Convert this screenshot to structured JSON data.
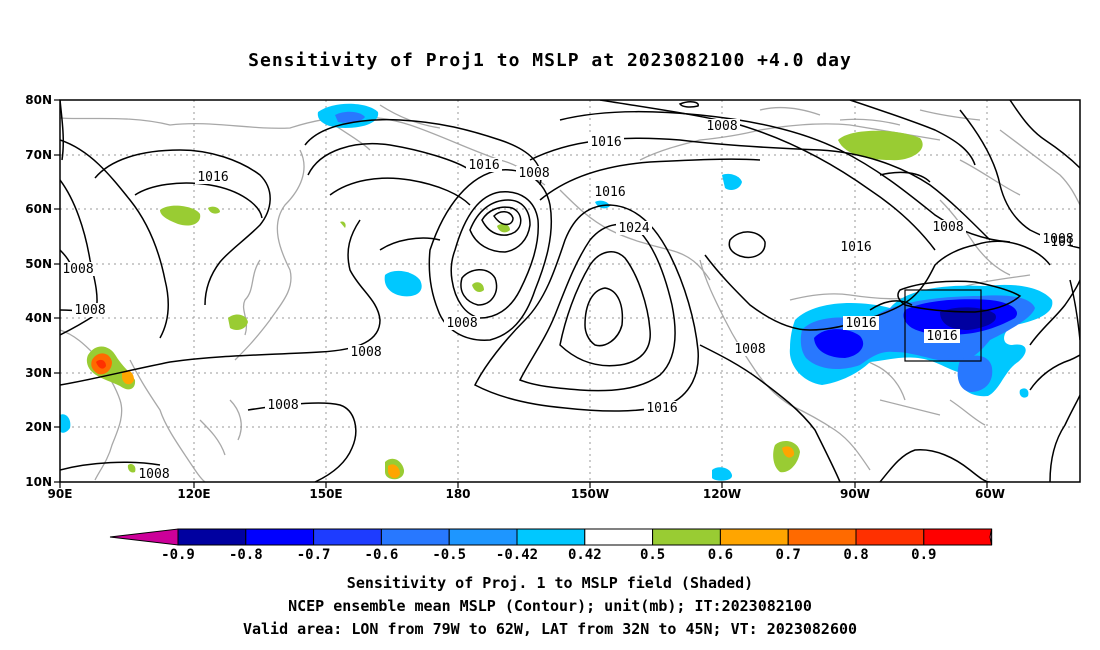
{
  "title": "Sensitivity of Proj1 to MSLP at 2023082100 +4.0 day",
  "lat_labels": [
    "80N",
    "70N",
    "60N",
    "50N",
    "40N",
    "30N",
    "20N",
    "10N"
  ],
  "lon_labels": [
    "90E",
    "120E",
    "150E",
    "180",
    "150W",
    "120W",
    "90W",
    "60W"
  ],
  "contour_labels": [
    "1008",
    "1016",
    "1016",
    "1008",
    "1016",
    "1016",
    "1024",
    "1008",
    "1016",
    "1008",
    "1008",
    "1008",
    "1016",
    "1008",
    "1016",
    "1008",
    "1008",
    "1008",
    "1016",
    "1008",
    "101"
  ],
  "colorbar": {
    "labels": [
      "-0.9",
      "-0.8",
      "-0.7",
      "-0.6",
      "-0.5",
      "-0.42",
      "0.42",
      "0.5",
      "0.6",
      "0.7",
      "0.8",
      "0.9"
    ],
    "colors": [
      "#cc0099",
      "#0000a0",
      "#0000ff",
      "#1e3cff",
      "#2878ff",
      "#1e96ff",
      "#00c8ff",
      "#ffffff",
      "#99cc33",
      "#ffa500",
      "#ff6a00",
      "#ff3000",
      "#ff0000",
      "#ff99cc"
    ]
  },
  "captions": [
    "Sensitivity of Proj. 1 to MSLP field (Shaded)",
    "NCEP ensemble mean MSLP (Contour); unit(mb); IT:2023082100",
    "Valid area: LON from 79W to 62W, LAT from 32N to 45N; VT: 2023082600"
  ]
}
